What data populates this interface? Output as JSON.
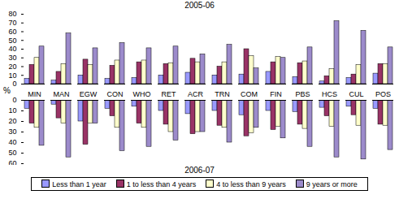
{
  "chart_data": [
    {
      "type": "bar",
      "title": "2005-06",
      "y_label": "%",
      "categories": [
        "MIN",
        "MAN",
        "EGW",
        "CON",
        "WHO",
        "RET",
        "ACR",
        "TRN",
        "COM",
        "FIN",
        "PBS",
        "HCS",
        "CUL",
        "POS"
      ],
      "series": [
        {
          "name": "Less than 1 year",
          "color": "#9999ff",
          "values": [
            6,
            4,
            10,
            6,
            7,
            10,
            13,
            10,
            11,
            14,
            8,
            3,
            7,
            12
          ]
        },
        {
          "name": "1 to less than 4 years",
          "color": "#993366",
          "values": [
            22,
            14,
            28,
            21,
            25,
            23,
            29,
            20,
            40,
            25,
            24,
            9,
            11,
            23
          ]
        },
        {
          "name": "4 to less than 9 years",
          "color": "#ffffcc",
          "values": [
            30,
            23,
            22,
            27,
            27,
            24,
            25,
            25,
            32,
            31,
            26,
            17,
            22,
            23
          ]
        },
        {
          "name": "9 years or more",
          "color": "#9c8bcb",
          "values": [
            43,
            58,
            41,
            47,
            41,
            43,
            34,
            45,
            18,
            30,
            42,
            72,
            61,
            42
          ]
        }
      ],
      "ylim": [
        0,
        80
      ],
      "yticks": [
        0,
        10,
        20,
        30,
        40,
        50,
        60,
        70,
        80
      ]
    },
    {
      "type": "bar",
      "title": "2006-07",
      "tick_labels": "y",
      "categories": [
        "MIN",
        "MAN",
        "EGW",
        "CON",
        "WHO",
        "RET",
        "ACR",
        "TRN",
        "COM",
        "FIN",
        "PBS",
        "HCS",
        "CUL",
        "POS"
      ],
      "series": [
        {
          "name": "Less than 1 year",
          "color": "#9999ff",
          "values": [
            8,
            4,
            20,
            8,
            6,
            10,
            13,
            10,
            14,
            10,
            11,
            7,
            6,
            8
          ]
        },
        {
          "name": "1 to less than 4 years",
          "color": "#993366",
          "values": [
            22,
            17,
            42,
            15,
            22,
            23,
            32,
            24,
            34,
            28,
            23,
            15,
            14,
            23
          ]
        },
        {
          "name": "4 to less than 9 years",
          "color": "#ffffcc",
          "values": [
            26,
            22,
            22,
            26,
            26,
            30,
            30,
            26,
            31,
            25,
            27,
            25,
            24,
            24
          ]
        },
        {
          "name": "9 years or more",
          "color": "#9c8bcb",
          "values": [
            43,
            54,
            22,
            48,
            44,
            38,
            30,
            40,
            26,
            36,
            44,
            54,
            56,
            47
          ]
        }
      ],
      "ylim": [
        60,
        0
      ],
      "yticks": [
        0,
        10,
        20,
        30,
        40,
        50,
        60
      ]
    }
  ]
}
